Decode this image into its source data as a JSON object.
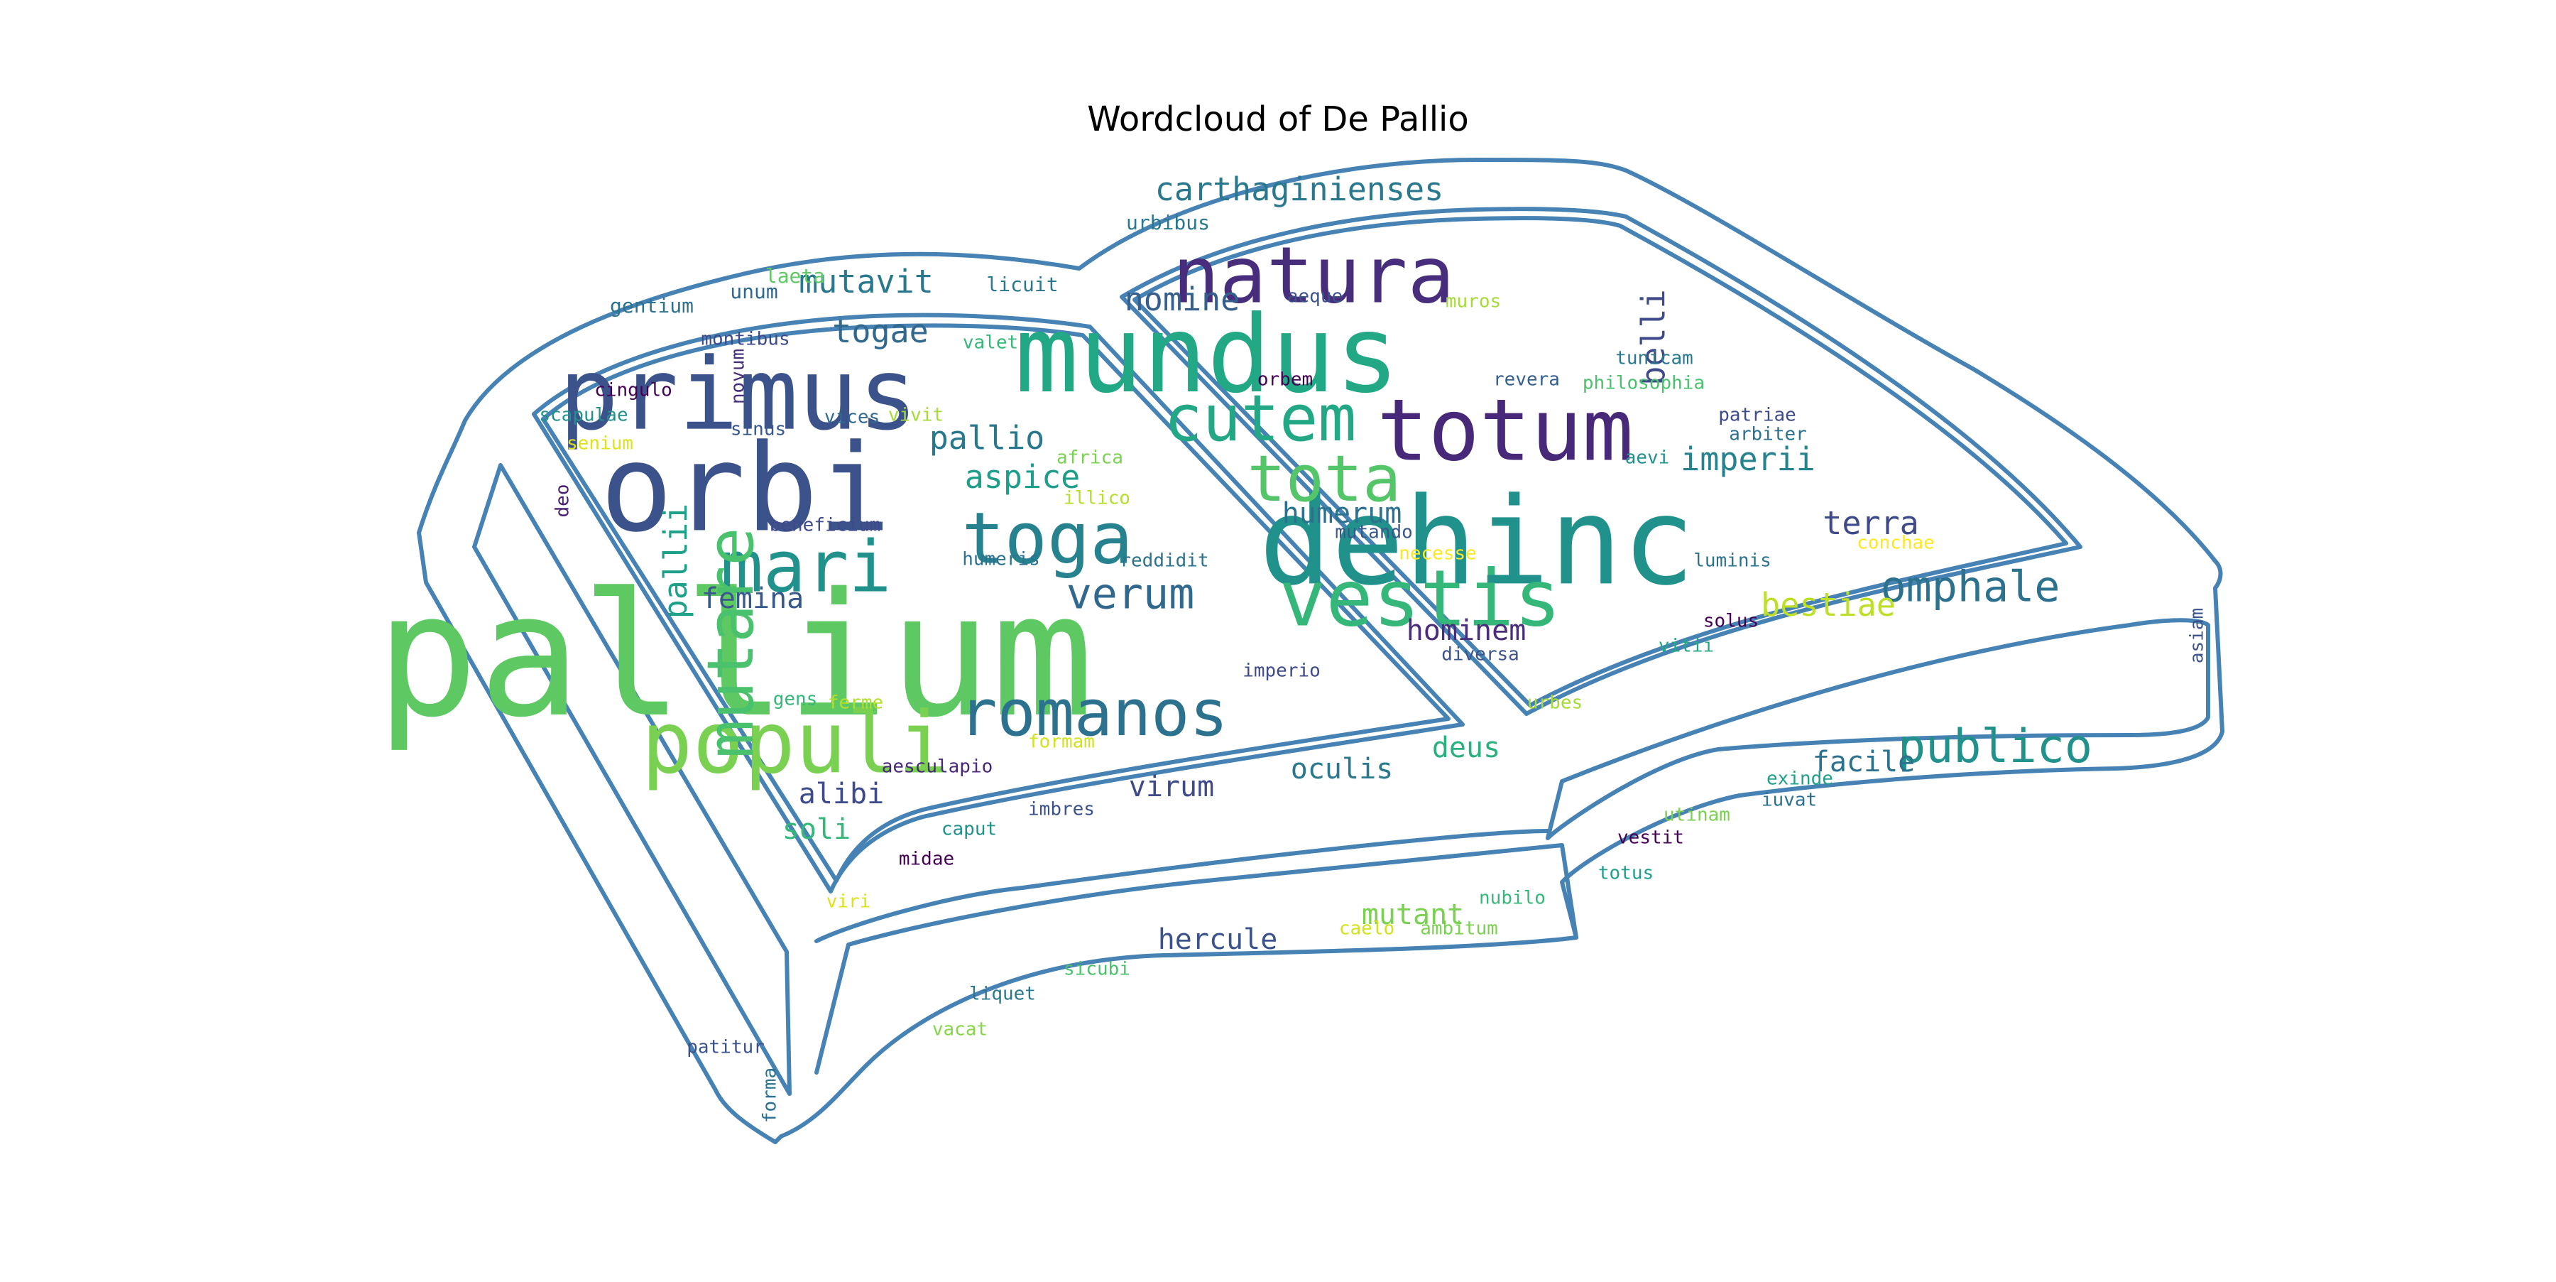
{
  "chart_data": {
    "type": "wordcloud",
    "title": "Wordcloud of De Pallio",
    "outline_color": "#4682b4",
    "words": [
      {
        "text": "pallium",
        "weight": 100,
        "color": "#5ec962"
      },
      {
        "text": "dehinc",
        "weight": 88,
        "color": "#21918c"
      },
      {
        "text": "orbi",
        "weight": 76,
        "color": "#3b528b"
      },
      {
        "text": "mundus",
        "weight": 74,
        "color": "#22a884"
      },
      {
        "text": "primus",
        "weight": 70,
        "color": "#3b528b"
      },
      {
        "text": "totum",
        "weight": 64,
        "color": "#482878"
      },
      {
        "text": "populi",
        "weight": 62,
        "color": "#7ad151"
      },
      {
        "text": "natura",
        "weight": 60,
        "color": "#472d7b"
      },
      {
        "text": "vestis",
        "weight": 60,
        "color": "#35b779"
      },
      {
        "text": "mari",
        "weight": 58,
        "color": "#21918c"
      },
      {
        "text": "toga",
        "weight": 56,
        "color": "#26828e"
      },
      {
        "text": "mutare",
        "weight": 56,
        "color": "#4ac16d"
      },
      {
        "text": "tota",
        "weight": 55,
        "color": "#54c568"
      },
      {
        "text": "romanos",
        "weight": 54,
        "color": "#2c728e"
      },
      {
        "text": "cutem",
        "weight": 52,
        "color": "#22a884"
      },
      {
        "text": "omphale",
        "weight": 40,
        "color": "#2c728e"
      },
      {
        "text": "publico",
        "weight": 40,
        "color": "#21918c"
      },
      {
        "text": "verum",
        "weight": 38,
        "color": "#31688e"
      },
      {
        "text": "carthaginienses",
        "weight": 32,
        "color": "#2a788e"
      },
      {
        "text": "mutavit",
        "weight": 30,
        "color": "#2a788e"
      },
      {
        "text": "pallio",
        "weight": 30,
        "color": "#2a788e"
      },
      {
        "text": "aspice",
        "weight": 30,
        "color": "#1f9e89"
      },
      {
        "text": "togae",
        "weight": 30,
        "color": "#31688e"
      },
      {
        "text": "nomine",
        "weight": 30,
        "color": "#35608d"
      },
      {
        "text": "imperii",
        "weight": 30,
        "color": "#26828e"
      },
      {
        "text": "terra",
        "weight": 30,
        "color": "#3e4a89"
      },
      {
        "text": "belli",
        "weight": 30,
        "color": "#3e4a89"
      },
      {
        "text": "pallii",
        "weight": 30,
        "color": "#1fa088"
      },
      {
        "text": "humerum",
        "weight": 28,
        "color": "#2c728e"
      },
      {
        "text": "hominem",
        "weight": 28,
        "color": "#472d7b"
      },
      {
        "text": "bestiae",
        "weight": 28,
        "color": "#bddf26"
      },
      {
        "text": "femina",
        "weight": 28,
        "color": "#38588c"
      },
      {
        "text": "alibi",
        "weight": 28,
        "color": "#3e4a89"
      },
      {
        "text": "soli",
        "weight": 28,
        "color": "#35b779"
      },
      {
        "text": "virum",
        "weight": 28,
        "color": "#3e4a89"
      },
      {
        "text": "oculis",
        "weight": 28,
        "color": "#2a788e"
      },
      {
        "text": "deus",
        "weight": 28,
        "color": "#2ab07f"
      },
      {
        "text": "facile",
        "weight": 28,
        "color": "#2c728e"
      },
      {
        "text": "mutant",
        "weight": 28,
        "color": "#7ad151"
      },
      {
        "text": "hercule",
        "weight": 28,
        "color": "#3b528b"
      },
      {
        "text": "urbibus",
        "weight": 16,
        "color": "#2a788e"
      },
      {
        "text": "laeta",
        "weight": 16,
        "color": "#5ec962"
      },
      {
        "text": "gentium",
        "weight": 16,
        "color": "#2c728e"
      },
      {
        "text": "unum",
        "weight": 16,
        "color": "#31688e"
      },
      {
        "text": "licuit",
        "weight": 16,
        "color": "#2a788e"
      },
      {
        "text": "montibus",
        "weight": 16,
        "color": "#3e4a89"
      },
      {
        "text": "valet",
        "weight": 16,
        "color": "#35b779"
      },
      {
        "text": "novum",
        "weight": 16,
        "color": "#472d7b"
      },
      {
        "text": "cingulo",
        "weight": 16,
        "color": "#440154"
      },
      {
        "text": "scapulae",
        "weight": 16,
        "color": "#21918c"
      },
      {
        "text": "sinus",
        "weight": 16,
        "color": "#38588c"
      },
      {
        "text": "vices",
        "weight": 16,
        "color": "#31688e"
      },
      {
        "text": "vivit",
        "weight": 16,
        "color": "#a5db36"
      },
      {
        "text": "senium",
        "weight": 16,
        "color": "#dde318"
      },
      {
        "text": "africa",
        "weight": 16,
        "color": "#7ad151"
      },
      {
        "text": "illico",
        "weight": 16,
        "color": "#b5de2b"
      },
      {
        "text": "deo",
        "weight": 16,
        "color": "#481f70"
      },
      {
        "text": "beneficium",
        "weight": 16,
        "color": "#3e4a89"
      },
      {
        "text": "humeris",
        "weight": 16,
        "color": "#2c728e"
      },
      {
        "text": "reddidit",
        "weight": 16,
        "color": "#2c728e"
      },
      {
        "text": "imperio",
        "weight": 16,
        "color": "#3e4a89"
      },
      {
        "text": "gens",
        "weight": 16,
        "color": "#35b779"
      },
      {
        "text": "ferme",
        "weight": 16,
        "color": "#b5de2b"
      },
      {
        "text": "formam",
        "weight": 16,
        "color": "#d2e21b"
      },
      {
        "text": "aesculapio",
        "weight": 16,
        "color": "#482878"
      },
      {
        "text": "imbres",
        "weight": 16,
        "color": "#3b528b"
      },
      {
        "text": "caput",
        "weight": 16,
        "color": "#21918c"
      },
      {
        "text": "midae",
        "weight": 16,
        "color": "#440154"
      },
      {
        "text": "viri",
        "weight": 16,
        "color": "#dde318"
      },
      {
        "text": "aeque",
        "weight": 16,
        "color": "#3b528b"
      },
      {
        "text": "muros",
        "weight": 16,
        "color": "#a5db36"
      },
      {
        "text": "tunicam",
        "weight": 16,
        "color": "#2a788e"
      },
      {
        "text": "philosophia",
        "weight": 16,
        "color": "#4ac16d"
      },
      {
        "text": "orbem",
        "weight": 16,
        "color": "#440154"
      },
      {
        "text": "revera",
        "weight": 16,
        "color": "#35608d"
      },
      {
        "text": "patriae",
        "weight": 16,
        "color": "#3e4a89"
      },
      {
        "text": "arbiter",
        "weight": 16,
        "color": "#2c728e"
      },
      {
        "text": "aevi",
        "weight": 16,
        "color": "#21918c"
      },
      {
        "text": "mutando",
        "weight": 16,
        "color": "#38588c"
      },
      {
        "text": "necesse",
        "weight": 16,
        "color": "#fde725"
      },
      {
        "text": "conchae",
        "weight": 16,
        "color": "#fde725"
      },
      {
        "text": "luminis",
        "weight": 16,
        "color": "#2c728e"
      },
      {
        "text": "solus",
        "weight": 16,
        "color": "#440154"
      },
      {
        "text": "diversa",
        "weight": 16,
        "color": "#3b528b"
      },
      {
        "text": "vitii",
        "weight": 16,
        "color": "#22a884"
      },
      {
        "text": "urbes",
        "weight": 16,
        "color": "#a5db36"
      },
      {
        "text": "asiam",
        "weight": 16,
        "color": "#3b528b"
      },
      {
        "text": "exinde",
        "weight": 16,
        "color": "#1fa088"
      },
      {
        "text": "iuvat",
        "weight": 16,
        "color": "#2c728e"
      },
      {
        "text": "utinam",
        "weight": 16,
        "color": "#7ad151"
      },
      {
        "text": "vestit",
        "weight": 16,
        "color": "#440154"
      },
      {
        "text": "totus",
        "weight": 16,
        "color": "#1f9e89"
      },
      {
        "text": "nubilo",
        "weight": 16,
        "color": "#35b779"
      },
      {
        "text": "caelo",
        "weight": 16,
        "color": "#d2e21b"
      },
      {
        "text": "ambitum",
        "weight": 16,
        "color": "#7ad151"
      },
      {
        "text": "sicubi",
        "weight": 16,
        "color": "#4ac16d"
      },
      {
        "text": "liquet",
        "weight": 16,
        "color": "#2a788e"
      },
      {
        "text": "vacat",
        "weight": 16,
        "color": "#86d549"
      },
      {
        "text": "patitur",
        "weight": 16,
        "color": "#3b528b"
      },
      {
        "text": "forma",
        "weight": 16,
        "color": "#2c728e"
      }
    ]
  }
}
